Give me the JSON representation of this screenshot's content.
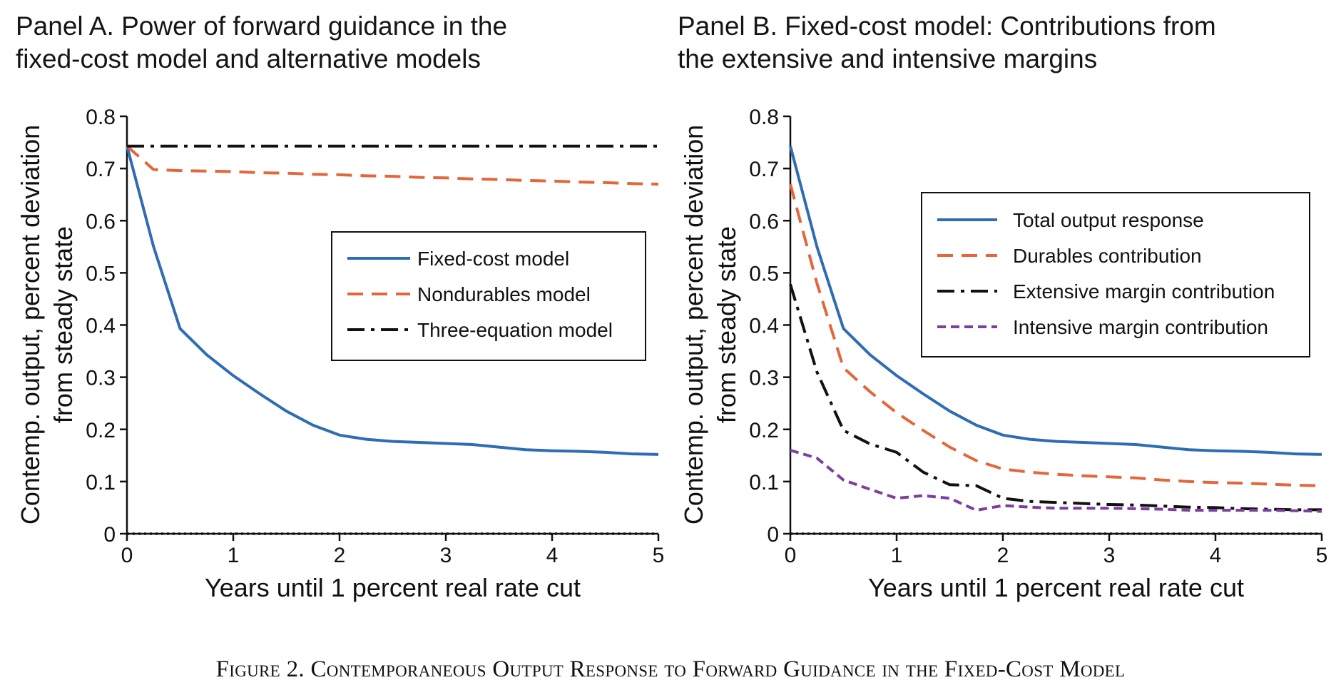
{
  "figure": {
    "caption": "Figure 2. Contemporaneous Output Response to Forward Guidance in the Fixed-Cost Model"
  },
  "colors": {
    "blue": "#2e6db4",
    "orange": "#e2673a",
    "black": "#111111",
    "purple": "#7c3f9e"
  },
  "chart_data": [
    {
      "type": "line",
      "title_lines": [
        "Panel A. Power of forward guidance in the",
        "fixed-cost model and alternative models"
      ],
      "xlabel": "Years until 1 percent real rate cut",
      "ylabel_lines": [
        "Contemp. output, percent deviation",
        "from steady state"
      ],
      "xlim": [
        0,
        5
      ],
      "ylim": [
        0,
        0.8
      ],
      "xticks": [
        0,
        1,
        2,
        3,
        4,
        5
      ],
      "yticks": [
        0,
        0.1,
        0.2,
        0.3,
        0.4,
        0.5,
        0.6,
        0.7,
        0.8
      ],
      "ytick_labels": [
        "0",
        "0.1",
        "0.2",
        "0.3",
        "0.4",
        "0.5",
        "0.6",
        "0.7",
        "0.8"
      ],
      "grid": false,
      "legend_position": "center-right",
      "zero_line": "dotted",
      "x": [
        0,
        0.25,
        0.5,
        0.75,
        1,
        1.25,
        1.5,
        1.75,
        2,
        2.25,
        2.5,
        2.75,
        3,
        3.25,
        3.5,
        3.75,
        4,
        4.25,
        4.5,
        4.75,
        5
      ],
      "series": [
        {
          "name": "Fixed-cost model",
          "color": "#2e6db4",
          "style": "solid",
          "values": [
            0.743,
            0.55,
            0.393,
            0.343,
            0.303,
            0.268,
            0.235,
            0.208,
            0.189,
            0.181,
            0.177,
            0.175,
            0.173,
            0.171,
            0.166,
            0.161,
            0.159,
            0.158,
            0.156,
            0.153,
            0.152
          ]
        },
        {
          "name": "Nondurables model",
          "color": "#e2673a",
          "style": "dashed",
          "values": [
            0.743,
            0.698,
            0.696,
            0.695,
            0.694,
            0.692,
            0.691,
            0.689,
            0.688,
            0.686,
            0.685,
            0.683,
            0.682,
            0.68,
            0.679,
            0.677,
            0.676,
            0.674,
            0.673,
            0.671,
            0.67
          ]
        },
        {
          "name": "Three-equation model",
          "color": "#111111",
          "style": "dashdot",
          "values": [
            0.743,
            0.743,
            0.743,
            0.743,
            0.743,
            0.743,
            0.743,
            0.743,
            0.743,
            0.743,
            0.743,
            0.743,
            0.743,
            0.743,
            0.743,
            0.743,
            0.743,
            0.743,
            0.743,
            0.743,
            0.743
          ]
        }
      ]
    },
    {
      "type": "line",
      "title_lines": [
        "Panel B. Fixed-cost model: Contributions from",
        "the extensive and intensive margins"
      ],
      "xlabel": "Years until 1 percent real rate cut",
      "ylabel_lines": [
        "Contemp. output, percent deviation",
        "from steady state"
      ],
      "xlim": [
        0,
        5
      ],
      "ylim": [
        0,
        0.8
      ],
      "xticks": [
        0,
        1,
        2,
        3,
        4,
        5
      ],
      "yticks": [
        0,
        0.1,
        0.2,
        0.3,
        0.4,
        0.5,
        0.6,
        0.7,
        0.8
      ],
      "ytick_labels": [
        "0",
        "0.1",
        "0.2",
        "0.3",
        "0.4",
        "0.5",
        "0.6",
        "0.7",
        "0.8"
      ],
      "grid": false,
      "legend_position": "top-right",
      "zero_line": "dotted",
      "x": [
        0,
        0.25,
        0.5,
        0.75,
        1,
        1.25,
        1.5,
        1.75,
        2,
        2.25,
        2.5,
        2.75,
        3,
        3.25,
        3.5,
        3.75,
        4,
        4.25,
        4.5,
        4.75,
        5
      ],
      "series": [
        {
          "name": "Total output response",
          "color": "#2e6db4",
          "style": "solid",
          "values": [
            0.743,
            0.55,
            0.393,
            0.343,
            0.303,
            0.268,
            0.235,
            0.208,
            0.189,
            0.181,
            0.177,
            0.175,
            0.173,
            0.171,
            0.166,
            0.161,
            0.159,
            0.158,
            0.156,
            0.153,
            0.152
          ]
        },
        {
          "name": "Durables contribution",
          "color": "#e2673a",
          "style": "dashed",
          "values": [
            0.67,
            0.48,
            0.318,
            0.272,
            0.232,
            0.198,
            0.166,
            0.14,
            0.124,
            0.118,
            0.114,
            0.111,
            0.109,
            0.107,
            0.103,
            0.1,
            0.098,
            0.097,
            0.095,
            0.093,
            0.092
          ]
        },
        {
          "name": "Extensive margin contribution",
          "color": "#111111",
          "style": "dashdot",
          "values": [
            0.478,
            0.31,
            0.198,
            0.172,
            0.156,
            0.118,
            0.094,
            0.092,
            0.068,
            0.062,
            0.06,
            0.058,
            0.056,
            0.055,
            0.053,
            0.051,
            0.05,
            0.048,
            0.047,
            0.046,
            0.046
          ]
        },
        {
          "name": "Intensive margin contribution",
          "color": "#7c3f9e",
          "style": "dashed-fine",
          "values": [
            0.16,
            0.145,
            0.103,
            0.085,
            0.068,
            0.073,
            0.068,
            0.045,
            0.054,
            0.051,
            0.049,
            0.049,
            0.049,
            0.048,
            0.047,
            0.045,
            0.045,
            0.045,
            0.045,
            0.044,
            0.043
          ]
        }
      ]
    }
  ]
}
